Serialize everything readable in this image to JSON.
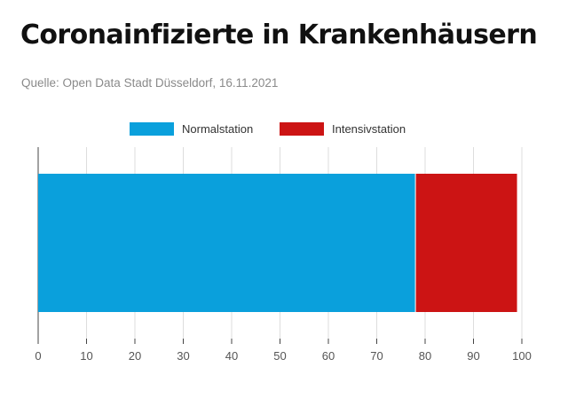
{
  "title": "Coronainfizierte in Krankenhäusern",
  "source": "Quelle: Open Data Stadt Düsseldorf, 16.11.2021",
  "colors": {
    "normal": "#0aa0dc",
    "intensive": "#cc1414",
    "grid": "#dddddd",
    "axis": "#444444"
  },
  "chart_data": {
    "type": "bar",
    "orientation": "horizontal",
    "stacked": true,
    "categories": [
      ""
    ],
    "series": [
      {
        "name": "Normalstation",
        "values": [
          78
        ]
      },
      {
        "name": "Intensivstation",
        "values": [
          21
        ]
      }
    ],
    "xlim": [
      0,
      100
    ],
    "xticks": [
      "0",
      "10",
      "20",
      "30",
      "40",
      "50",
      "60",
      "70",
      "80",
      "90",
      "100"
    ],
    "grid": true,
    "legend": "top-center"
  }
}
